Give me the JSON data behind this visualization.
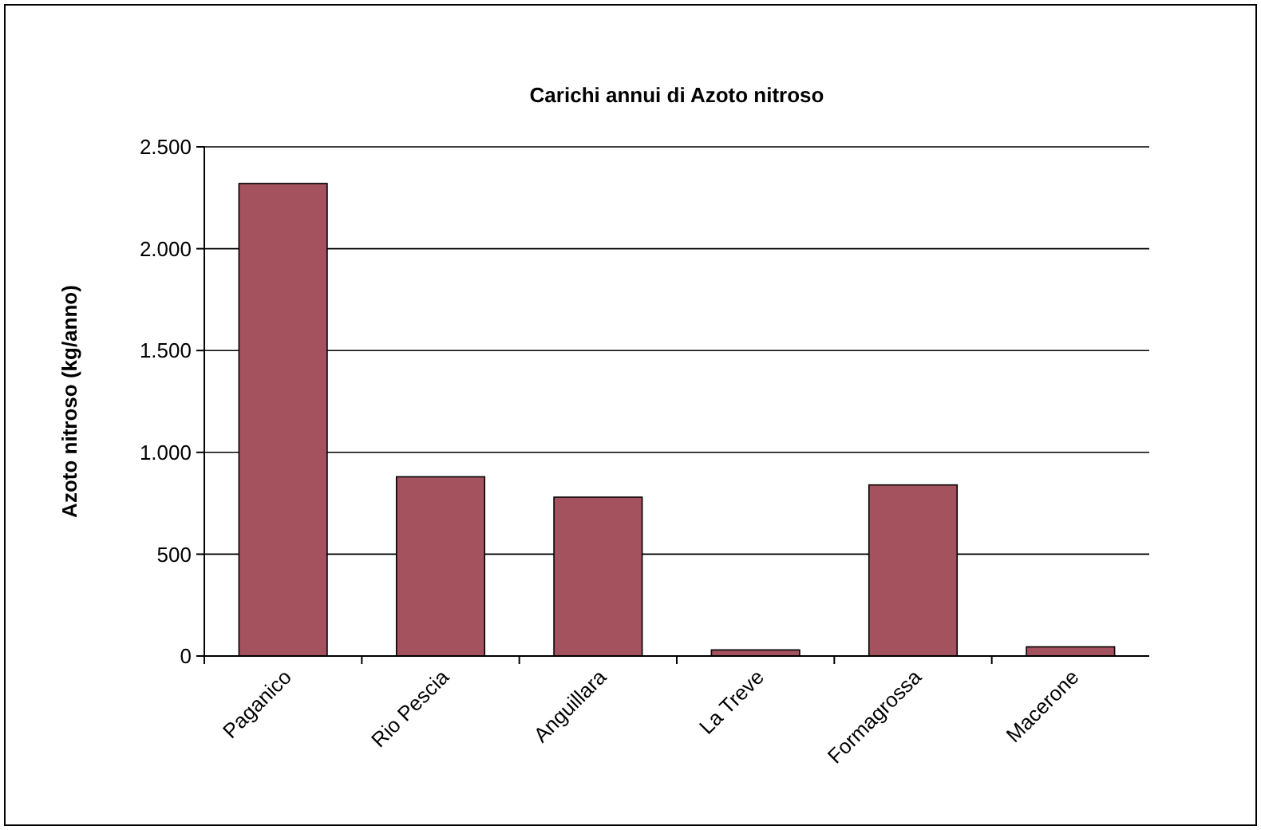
{
  "chart_data": {
    "type": "bar",
    "title": "Carichi annui di Azoto nitroso",
    "ylabel": "Azoto nitroso (kg/anno)",
    "categories": [
      "Paganico",
      "Rio Pescia",
      "Anguillara",
      "La Treve",
      "Formagrossa",
      "Macerone"
    ],
    "values": [
      2320,
      880,
      780,
      30,
      840,
      45
    ],
    "color": "#a5525f",
    "ylim": [
      0,
      2500
    ],
    "yticks": [
      {
        "value": 0,
        "label": "0"
      },
      {
        "value": 500,
        "label": "500"
      },
      {
        "value": 1000,
        "label": "1.000"
      },
      {
        "value": 1500,
        "label": "1.500"
      },
      {
        "value": 2000,
        "label": "2.000"
      },
      {
        "value": 2500,
        "label": "2.500"
      }
    ],
    "grid": "y"
  }
}
